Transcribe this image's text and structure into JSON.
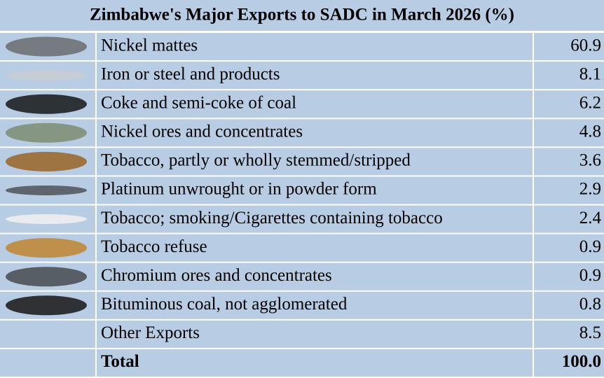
{
  "table": {
    "title": "Zimbabwe's Major Exports to SADC in March 2026 (%)",
    "rows": [
      [
        "Nickel mattes",
        "60.9"
      ],
      [
        "Iron or steel and products",
        "8.1"
      ],
      [
        "Coke and semi-coke of coal",
        "6.2"
      ],
      [
        "Nickel ores and concentrates",
        "4.8"
      ],
      [
        "Tobacco, partly or wholly stemmed/stripped",
        "3.6"
      ],
      [
        "Platinum unwrought or in powder form",
        "2.9"
      ],
      [
        "Tobacco; smoking/Cigarettes containing tobacco",
        "2.4"
      ],
      [
        "Tobacco refuse",
        "0.9"
      ],
      [
        "Chromium ores and concentrates",
        "0.9"
      ],
      [
        "Bituminous coal,  not agglomerated",
        "0.8"
      ],
      [
        "Other Exports",
        "8.5"
      ],
      [
        "Total",
        "100.0"
      ]
    ]
  }
}
